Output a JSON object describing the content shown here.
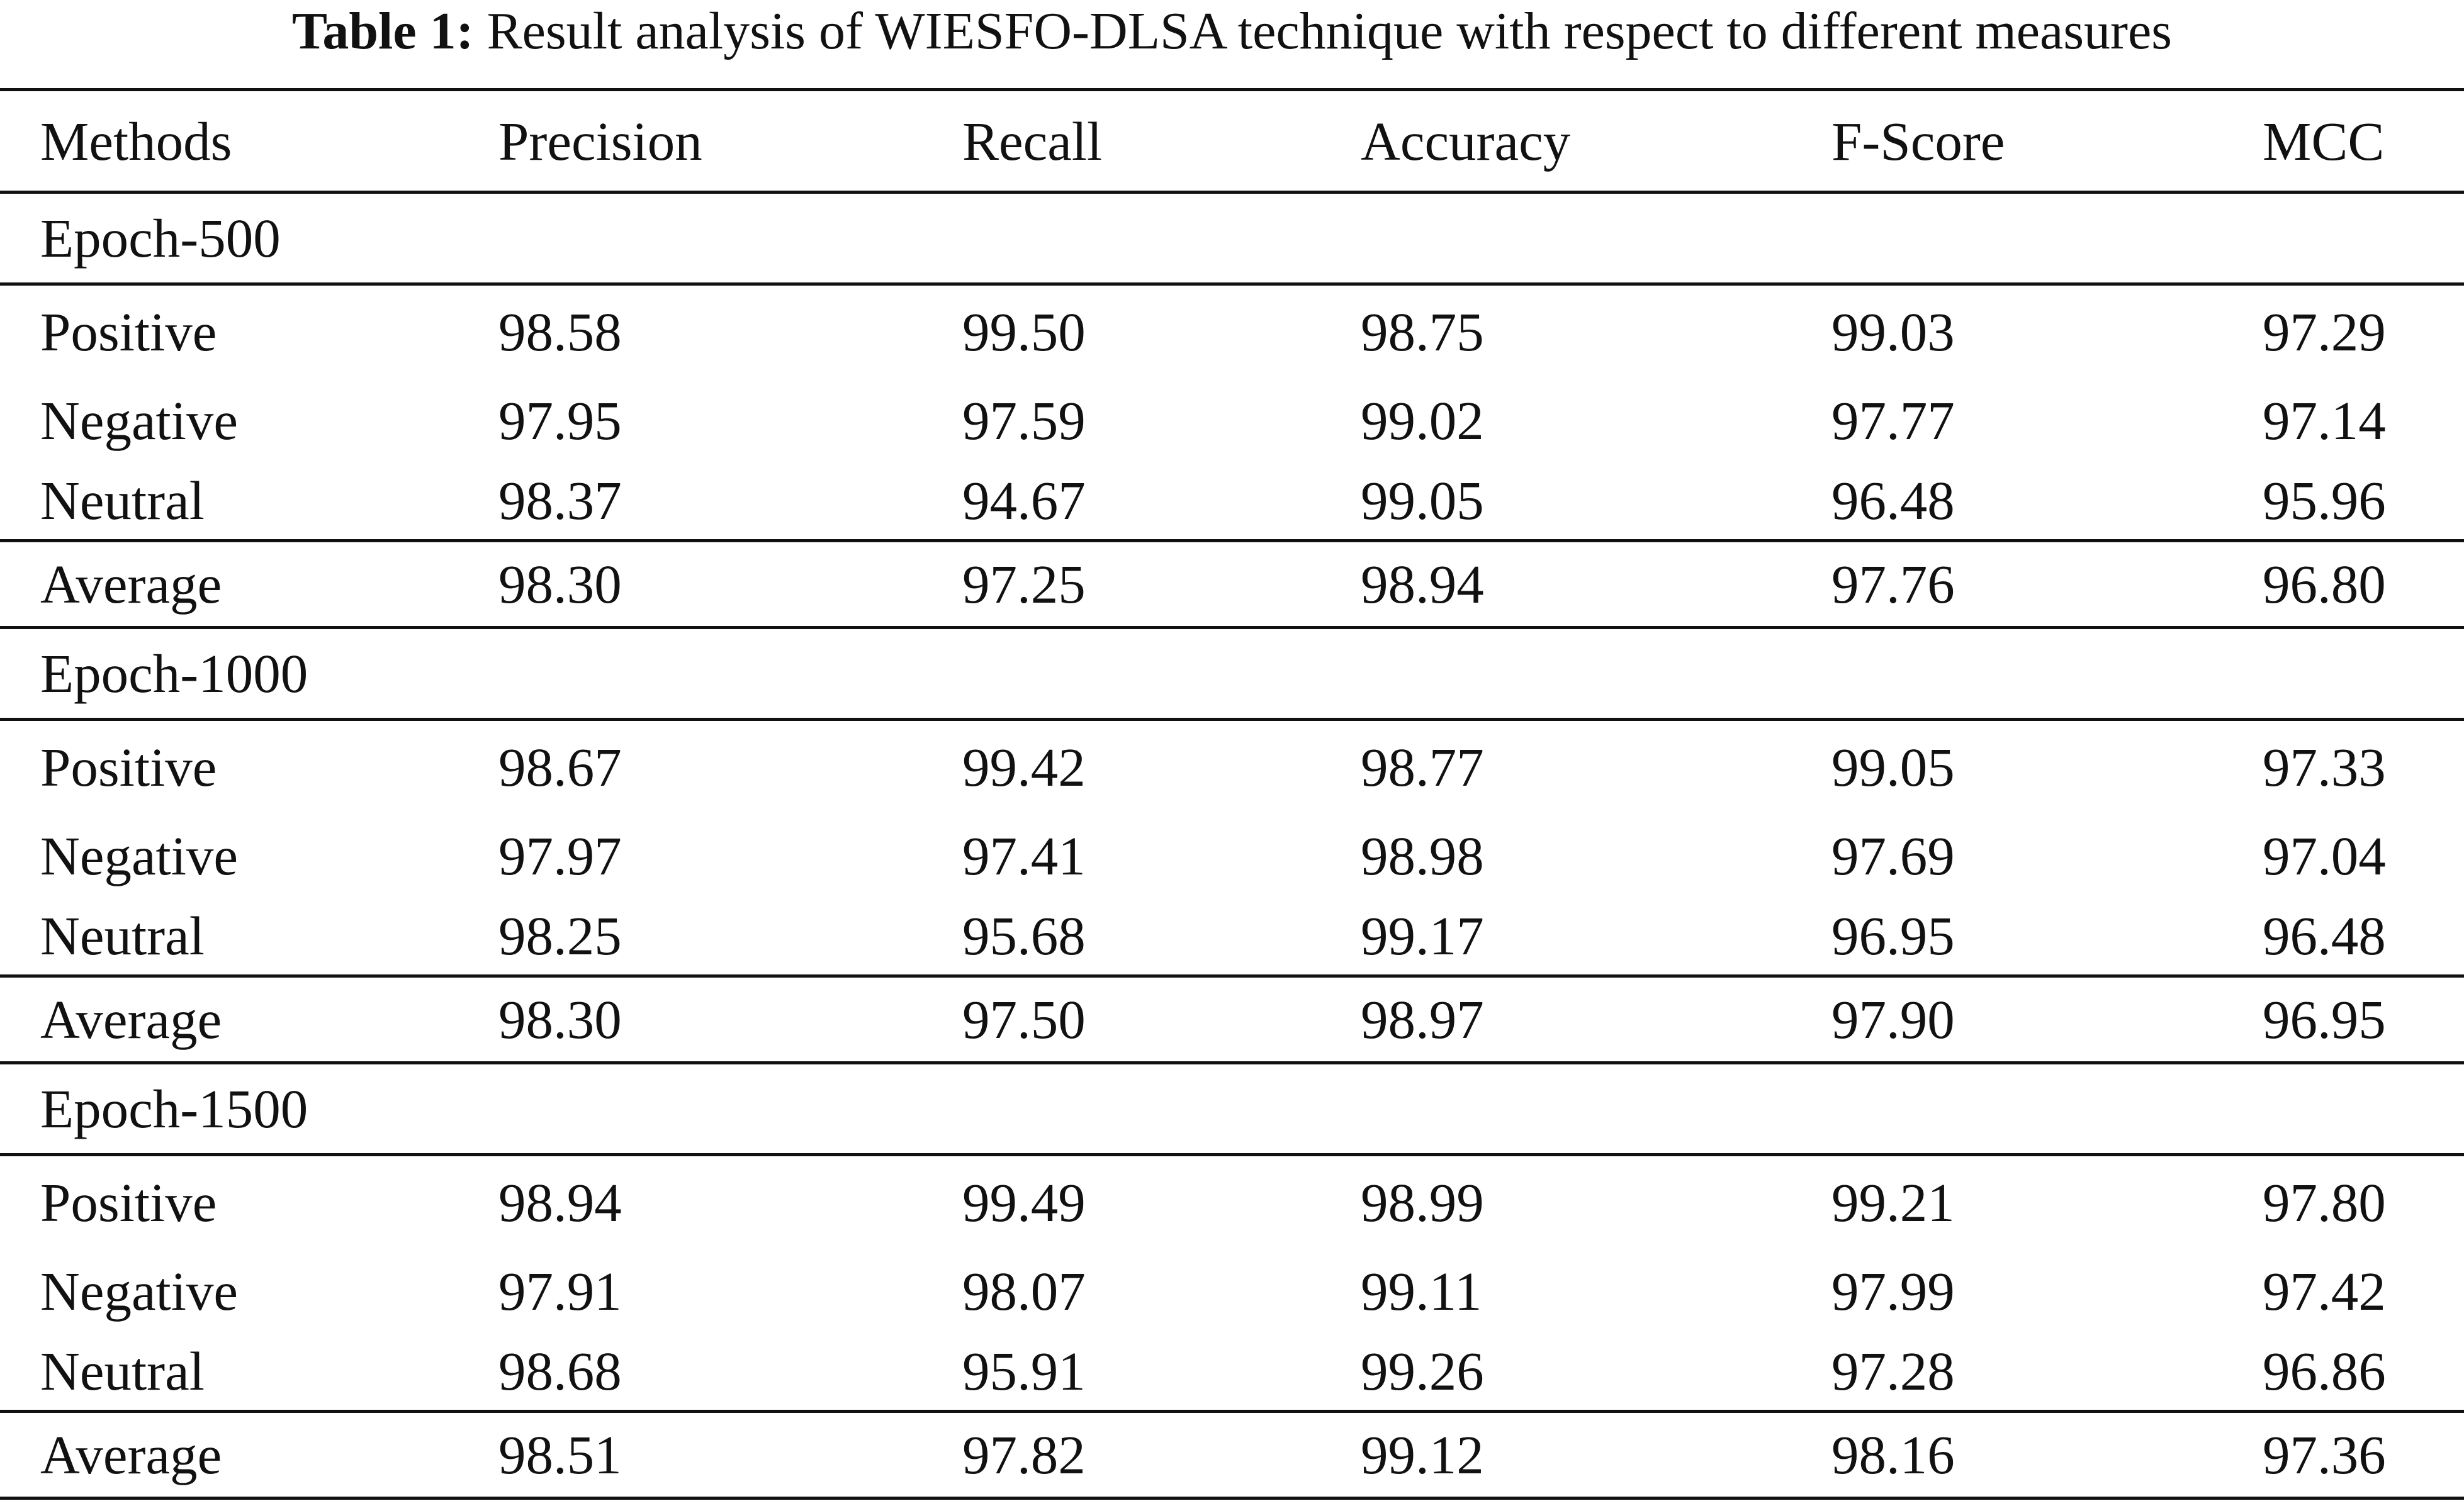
{
  "caption": {
    "label": "Table 1:",
    "text": "Result analysis of WIESFO-DLSA technique with respect to different measures"
  },
  "table": {
    "headers": [
      "Methods",
      "Precision",
      "Recall",
      "Accuracy",
      "F-Score",
      "MCC"
    ],
    "groups": [
      {
        "title": "Epoch-500",
        "rows": [
          [
            "Positive",
            "98.58",
            "99.50",
            "98.75",
            "99.03",
            "97.29"
          ],
          [
            "Negative",
            "97.95",
            "97.59",
            "99.02",
            "97.77",
            "97.14"
          ],
          [
            "Neutral",
            "98.37",
            "94.67",
            "99.05",
            "96.48",
            "95.96"
          ]
        ],
        "average": [
          "Average",
          "98.30",
          "97.25",
          "98.94",
          "97.76",
          "96.80"
        ]
      },
      {
        "title": "Epoch-1000",
        "rows": [
          [
            "Positive",
            "98.67",
            "99.42",
            "98.77",
            "99.05",
            "97.33"
          ],
          [
            "Negative",
            "97.97",
            "97.41",
            "98.98",
            "97.69",
            "97.04"
          ],
          [
            "Neutral",
            "98.25",
            "95.68",
            "99.17",
            "96.95",
            "96.48"
          ]
        ],
        "average": [
          "Average",
          "98.30",
          "97.50",
          "98.97",
          "97.90",
          "96.95"
        ]
      },
      {
        "title": "Epoch-1500",
        "rows": [
          [
            "Positive",
            "98.94",
            "99.49",
            "98.99",
            "99.21",
            "97.80"
          ],
          [
            "Negative",
            "97.91",
            "98.07",
            "99.11",
            "97.99",
            "97.42"
          ],
          [
            "Neutral",
            "98.68",
            "95.91",
            "99.26",
            "97.28",
            "96.86"
          ]
        ],
        "average": [
          "Average",
          "98.51",
          "97.82",
          "99.12",
          "98.16",
          "97.36"
        ]
      }
    ]
  }
}
